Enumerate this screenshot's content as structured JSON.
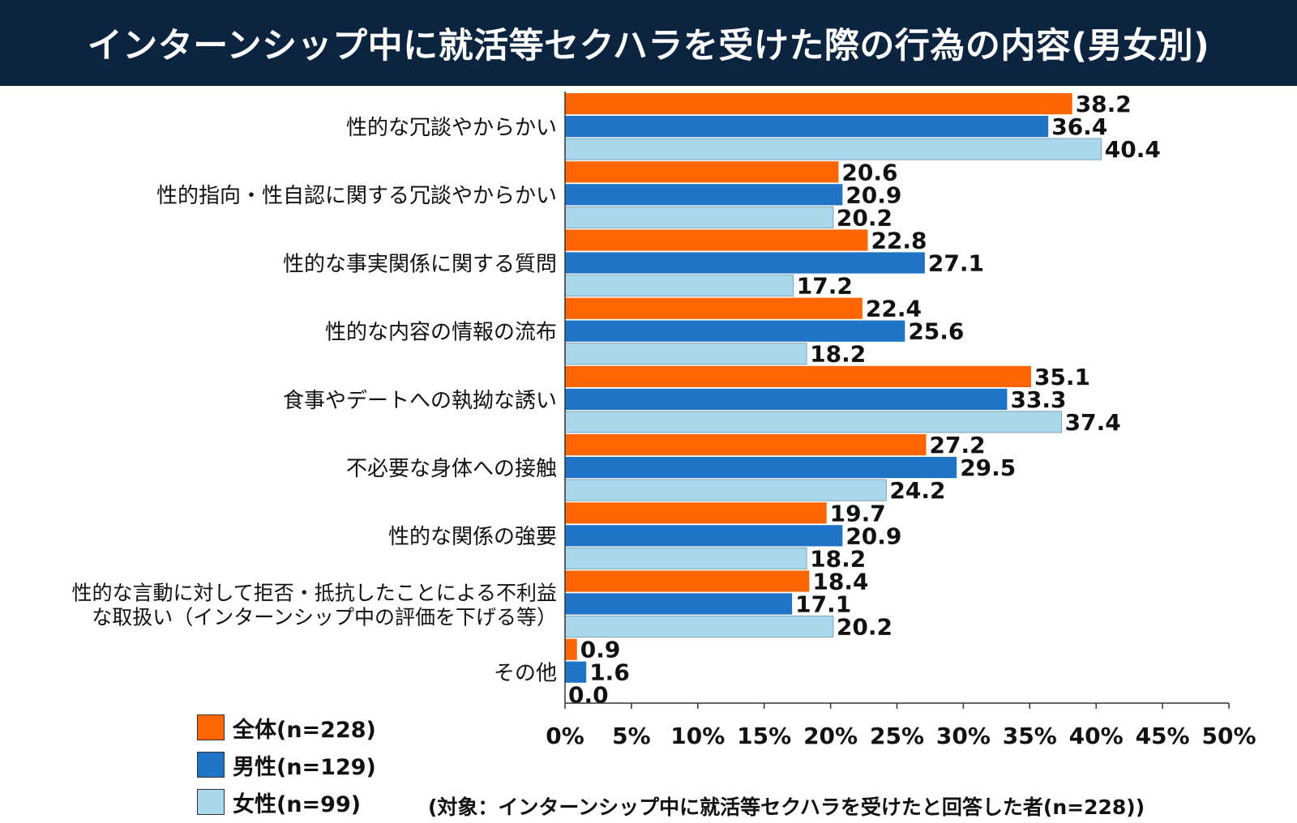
{
  "title": "インターンシップ中に就活等セクハラを受けた際の行為の内容(男女別)",
  "note": "(対象：インターンシップ中に就活等セクハラを受けたと回答した者(n=228))",
  "colors": {
    "title_bg": "#0d2440",
    "series": [
      "#ff6600",
      "#1f74c8",
      "#a9d8ec"
    ]
  },
  "legend": [
    {
      "name": "全体(n=228)"
    },
    {
      "name": "男性(n=129)"
    },
    {
      "name": "女性(n=99)"
    }
  ],
  "chart_data": {
    "type": "bar",
    "orientation": "horizontal",
    "categories": [
      [
        "性的な冗談やからかい"
      ],
      [
        "性的指向・性自認に関する冗談やからかい"
      ],
      [
        "性的な事実関係に関する質問"
      ],
      [
        "性的な内容の情報の流布"
      ],
      [
        "食事やデートへの執拗な誘い"
      ],
      [
        "不必要な身体への接触"
      ],
      [
        "性的な関係の強要"
      ],
      [
        "性的な言動に対して拒否・抵抗したことによる不利益",
        "な取扱い（インターンシップ中の評価を下げる等）"
      ],
      [
        "その他"
      ]
    ],
    "series": [
      {
        "name": "全体(n=228)",
        "values": [
          38.2,
          20.6,
          22.8,
          22.4,
          35.1,
          27.2,
          19.7,
          18.4,
          0.9
        ]
      },
      {
        "name": "男性(n=129)",
        "values": [
          36.4,
          20.9,
          27.1,
          25.6,
          33.3,
          29.5,
          20.9,
          17.1,
          1.6
        ]
      },
      {
        "name": "女性(n=99)",
        "values": [
          40.4,
          20.2,
          17.2,
          18.2,
          37.4,
          24.2,
          18.2,
          20.2,
          0.0
        ]
      }
    ],
    "value_labels": [
      [
        "38.2",
        "20.6",
        "22.8",
        "22.4",
        "35.1",
        "27.2",
        "19.7",
        "18.4",
        "0.9"
      ],
      [
        "36.4",
        "20.9",
        "27.1",
        "25.6",
        "33.3",
        "29.5",
        "20.9",
        "17.1",
        "1.6"
      ],
      [
        "40.4",
        "20.2",
        "17.2",
        "18.2",
        "37.4",
        "24.2",
        "18.2",
        "20.2",
        "0.0"
      ]
    ],
    "xlim": [
      0,
      50
    ],
    "xticks": [
      0,
      5,
      10,
      15,
      20,
      25,
      30,
      35,
      40,
      45,
      50
    ],
    "xtick_labels": [
      "0%",
      "5%",
      "10%",
      "15%",
      "20%",
      "25%",
      "30%",
      "35%",
      "40%",
      "45%",
      "50%"
    ],
    "grid": false,
    "legend_position": "bottom-left"
  }
}
